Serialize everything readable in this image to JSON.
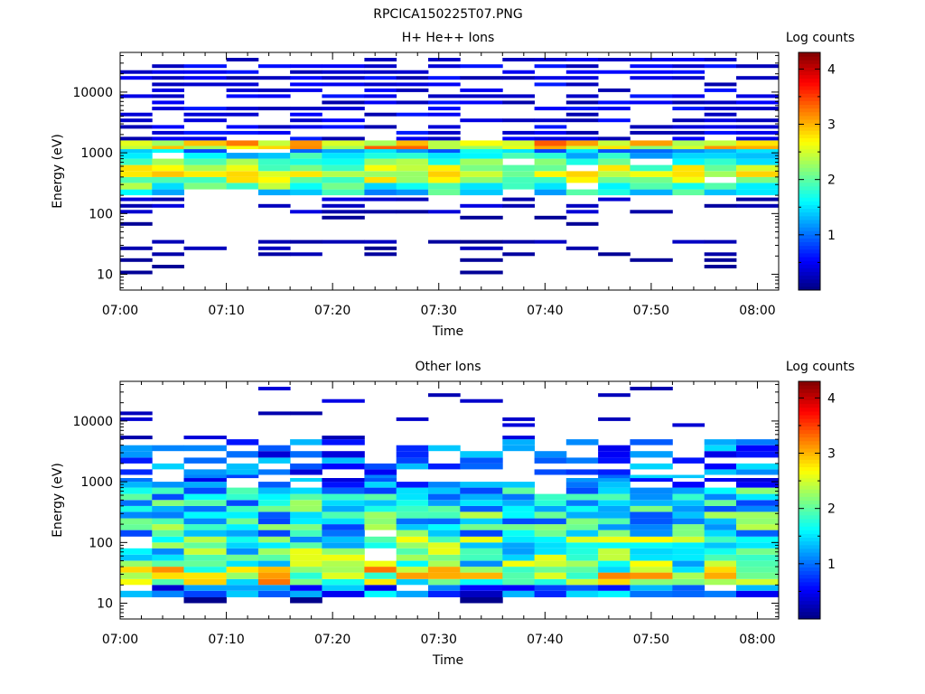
{
  "figure": {
    "title": "RPCICA150225T07.PNG"
  },
  "chart_data": [
    {
      "type": "heatmap",
      "title": "H+ He++ Ions",
      "xlabel": "Time",
      "ylabel": "Energy (eV)",
      "yscale": "log",
      "ylim": [
        5.5,
        45000
      ],
      "xlim": [
        "07:00",
        "08:02"
      ],
      "xticks": [
        "07:00",
        "07:10",
        "07:20",
        "07:30",
        "07:40",
        "07:50",
        "08:00"
      ],
      "yticks": [
        "10",
        "100",
        "1000",
        "10000"
      ],
      "colorbar": {
        "label": "Log counts",
        "range": [
          0,
          4.3
        ],
        "ticks": [
          "1",
          "2",
          "3",
          "4"
        ],
        "colormap": "jet"
      },
      "time_bins": [
        "07:00",
        "07:03",
        "07:06",
        "07:10",
        "07:13",
        "07:16",
        "07:19",
        "07:23",
        "07:26",
        "07:29",
        "07:32",
        "07:36",
        "07:39",
        "07:42",
        "07:45",
        "07:48",
        "07:52",
        "07:55",
        "07:58"
      ],
      "energy_bins": [
        10,
        12.5,
        16,
        20,
        25,
        32,
        40,
        50,
        63,
        80,
        100,
        125,
        160,
        200,
        250,
        320,
        400,
        500,
        630,
        800,
        1000,
        1150,
        1300,
        1600,
        2000,
        2500,
        3200,
        4000,
        5000,
        6300,
        8000,
        10000,
        12500,
        16000,
        20000,
        25000,
        32000
      ],
      "grid": false
    },
    {
      "type": "heatmap",
      "title": "Other Ions",
      "xlabel": "Time",
      "ylabel": "Energy (eV)",
      "yscale": "log",
      "ylim": [
        5.5,
        45000
      ],
      "xlim": [
        "07:00",
        "08:02"
      ],
      "xticks": [
        "07:00",
        "07:10",
        "07:20",
        "07:30",
        "07:40",
        "07:50",
        "08:00"
      ],
      "yticks": [
        "10",
        "100",
        "1000",
        "10000"
      ],
      "colorbar": {
        "label": "Log counts",
        "range": [
          0,
          4.3
        ],
        "ticks": [
          "1",
          "2",
          "3",
          "4"
        ],
        "colormap": "jet"
      },
      "time_bins": [
        "07:00",
        "07:03",
        "07:06",
        "07:10",
        "07:13",
        "07:16",
        "07:19",
        "07:23",
        "07:26",
        "07:29",
        "07:32",
        "07:36",
        "07:39",
        "07:42",
        "07:45",
        "07:48",
        "07:52",
        "07:55",
        "07:58"
      ],
      "energy_bins": [
        10,
        12.5,
        16,
        20,
        25,
        32,
        40,
        50,
        63,
        80,
        100,
        125,
        160,
        200,
        250,
        320,
        400,
        500,
        630,
        800,
        1000,
        1150,
        1300,
        1600,
        2000,
        2500,
        3200,
        4000,
        5000,
        6300,
        8000,
        10000,
        12500,
        16000,
        20000,
        25000,
        32000
      ],
      "grid": false
    }
  ]
}
